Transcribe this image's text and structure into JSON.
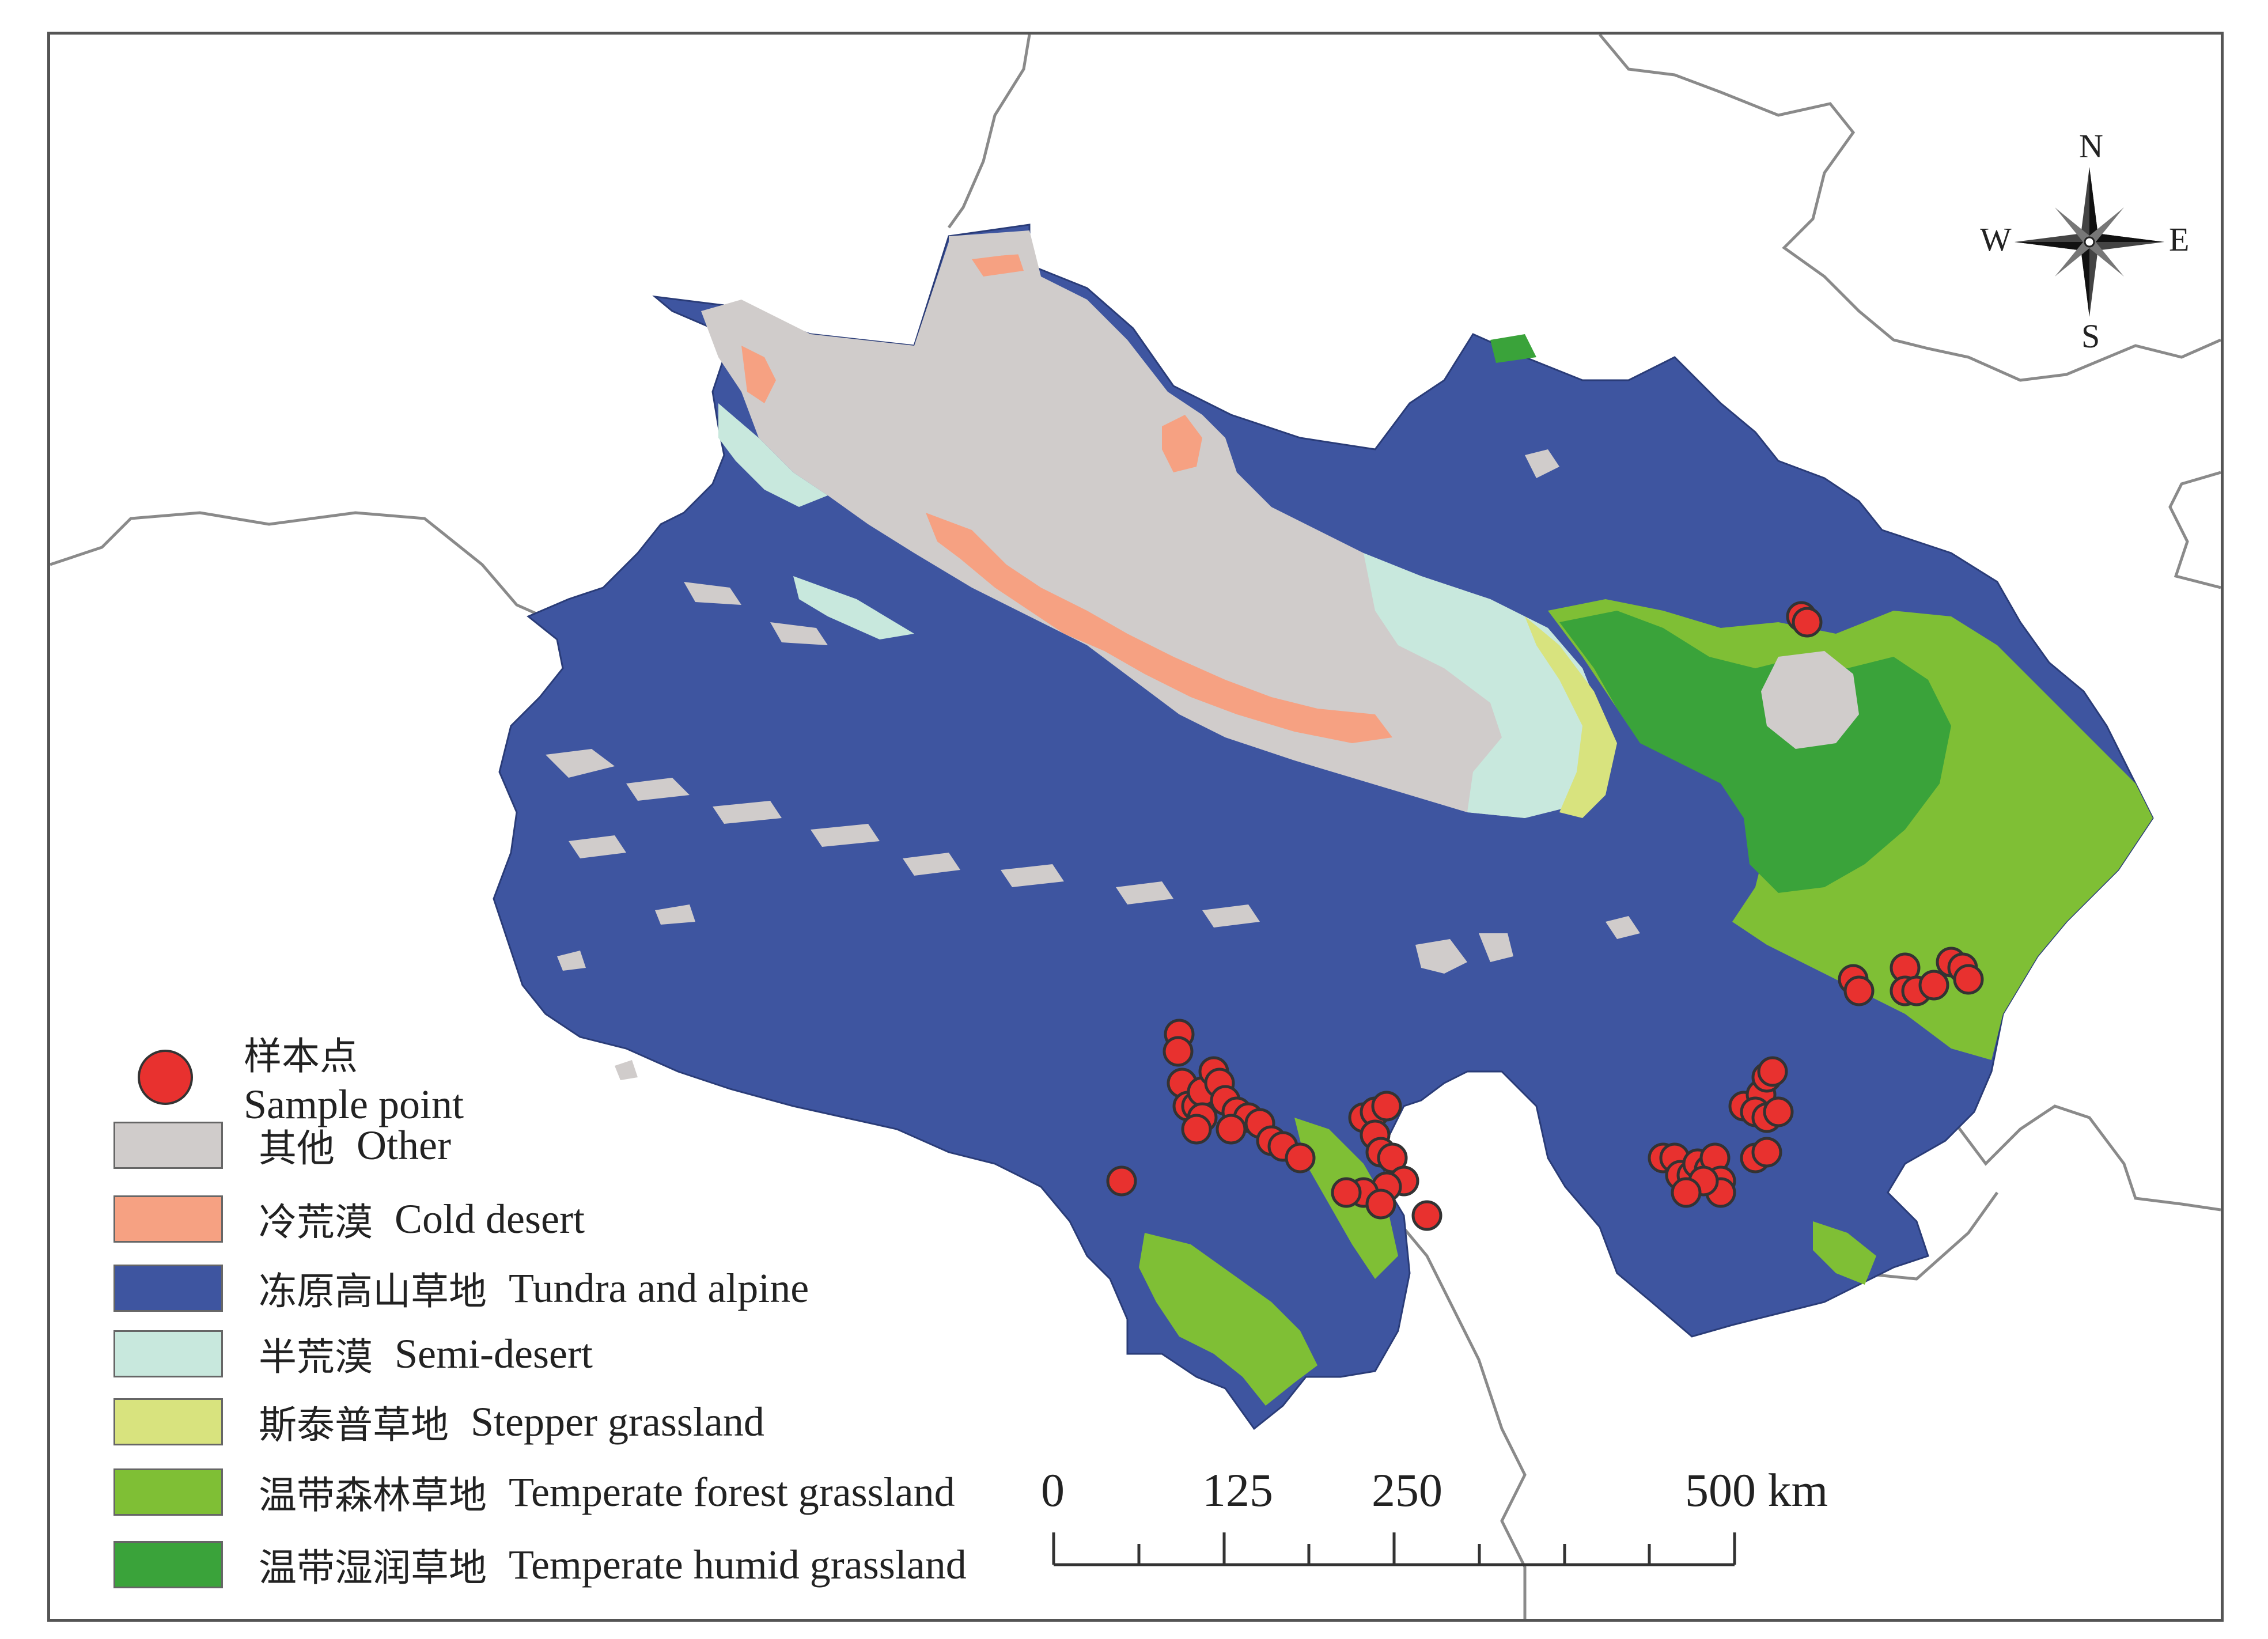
{
  "legend": {
    "sample_point": {
      "zh": "样本点",
      "en": "Sample point"
    },
    "classes": [
      {
        "id": "other",
        "zh": "其他",
        "en": "Other",
        "color": "#d0cccb"
      },
      {
        "id": "cold-desert",
        "zh": "冷荒漠",
        "en": "Cold desert",
        "color": "#f6a182"
      },
      {
        "id": "tundra-alpine",
        "zh": "冻原高山草地",
        "en": "Tundra and alpine",
        "color": "#3e55a0"
      },
      {
        "id": "semi-desert",
        "zh": "半荒漠",
        "en": "Semi-desert",
        "color": "#c8e8dd"
      },
      {
        "id": "stepper-grassland",
        "zh": "斯泰普草地",
        "en": "Stepper grassland",
        "color": "#d8e37e"
      },
      {
        "id": "temperate-forest-grassland",
        "zh": "温带森林草地",
        "en": "Temperate forest grassland",
        "color": "#7fbf35"
      },
      {
        "id": "temperate-humid-grassland",
        "zh": "温带湿润草地",
        "en": "Temperate humid grassland",
        "color": "#3aa33a"
      }
    ]
  },
  "compass": {
    "n": "N",
    "s": "S",
    "e": "E",
    "w": "W"
  },
  "scale": {
    "labels": [
      "0",
      "125",
      "250",
      "500 km"
    ],
    "values_km": [
      0,
      125,
      250,
      500
    ]
  },
  "colors": {
    "sample_fill": "#e8312f",
    "border_line": "#8a8a8a",
    "frame": "#555555"
  }
}
